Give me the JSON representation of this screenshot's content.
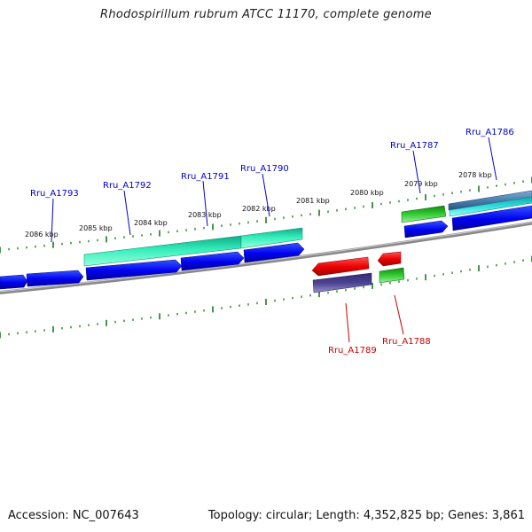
{
  "title": "Rhodospirillum rubrum ATCC 11170, complete genome",
  "footer": {
    "accession": "Accession: NC_007643",
    "summary": "Topology: circular; Length: 4,352,825 bp; Genes: 3,861"
  },
  "kbp_labels": [
    "2086 kbp",
    "2085 kbp",
    "2084 kbp",
    "2083 kbp",
    "2082 kbp",
    "2081 kbp",
    "2080 kbp",
    "2079 kbp",
    "2078 kbp"
  ],
  "genes": [
    {
      "name": "Rru_A1793",
      "strand": "forward",
      "color": "#0000cc"
    },
    {
      "name": "Rru_A1792",
      "strand": "forward",
      "color": "#0000cc"
    },
    {
      "name": "Rru_A1791",
      "strand": "forward",
      "color": "#0000cc"
    },
    {
      "name": "Rru_A1790",
      "strand": "forward",
      "color": "#0000cc"
    },
    {
      "name": "Rru_A1787",
      "strand": "forward",
      "color": "#0000cc"
    },
    {
      "name": "Rru_A1786",
      "strand": "forward",
      "color": "#0000cc"
    },
    {
      "name": "Rru_A1789",
      "strand": "reverse",
      "color": "#cc0000"
    },
    {
      "name": "Rru_A1788",
      "strand": "reverse",
      "color": "#cc0000"
    }
  ],
  "colors": {
    "cds": "#0000ee",
    "gene_green": "#22cc22",
    "gene_teal": "#22ddaa",
    "gene_cyan": "#22cccc",
    "gene_steel": "#4a7fb0",
    "reverse_red": "#ee0000",
    "reverse_purple": "#4a4290",
    "backbone": "#777777",
    "ticks": "#1a7a1a"
  }
}
